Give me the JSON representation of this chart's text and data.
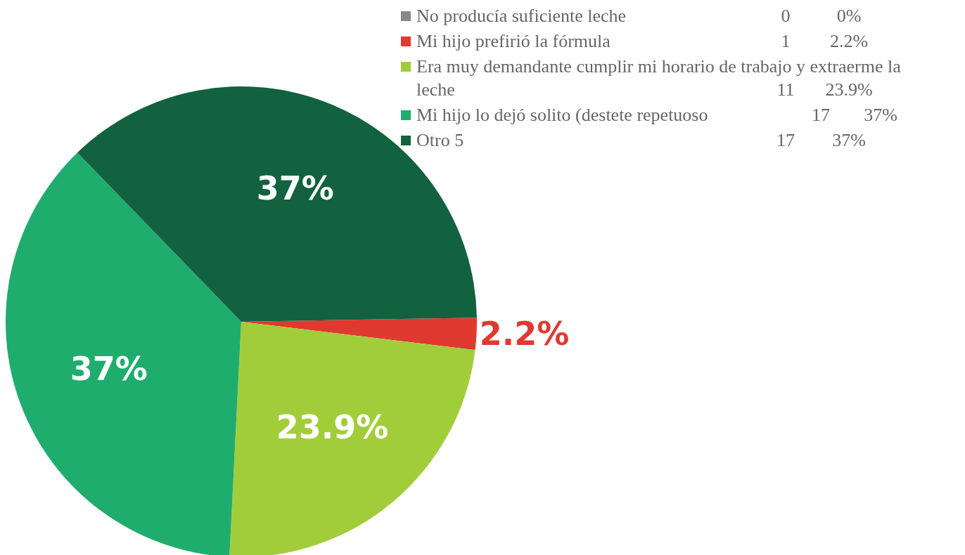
{
  "chart_data": {
    "type": "pie",
    "categories": [
      "No producía suficiente leche",
      "Mi hijo prefirió la fórmula",
      "Era muy demandante cumplir mi horario de trabajo y extraerme la leche",
      "Mi hijo lo dejó solito (destete repetuoso",
      "Otro      5"
    ],
    "values": [
      0,
      2.2,
      23.9,
      37,
      37
    ],
    "colors": [
      "#888888",
      "#e0392f",
      "#a2cd3a",
      "#1fad6e",
      "#12623f"
    ],
    "value_labels": [
      "0%",
      "2.2%",
      "23.9%",
      "37%",
      "37%"
    ],
    "annotations": [
      "0",
      "1",
      "11",
      "17",
      "17"
    ],
    "legend": "top right"
  }
}
